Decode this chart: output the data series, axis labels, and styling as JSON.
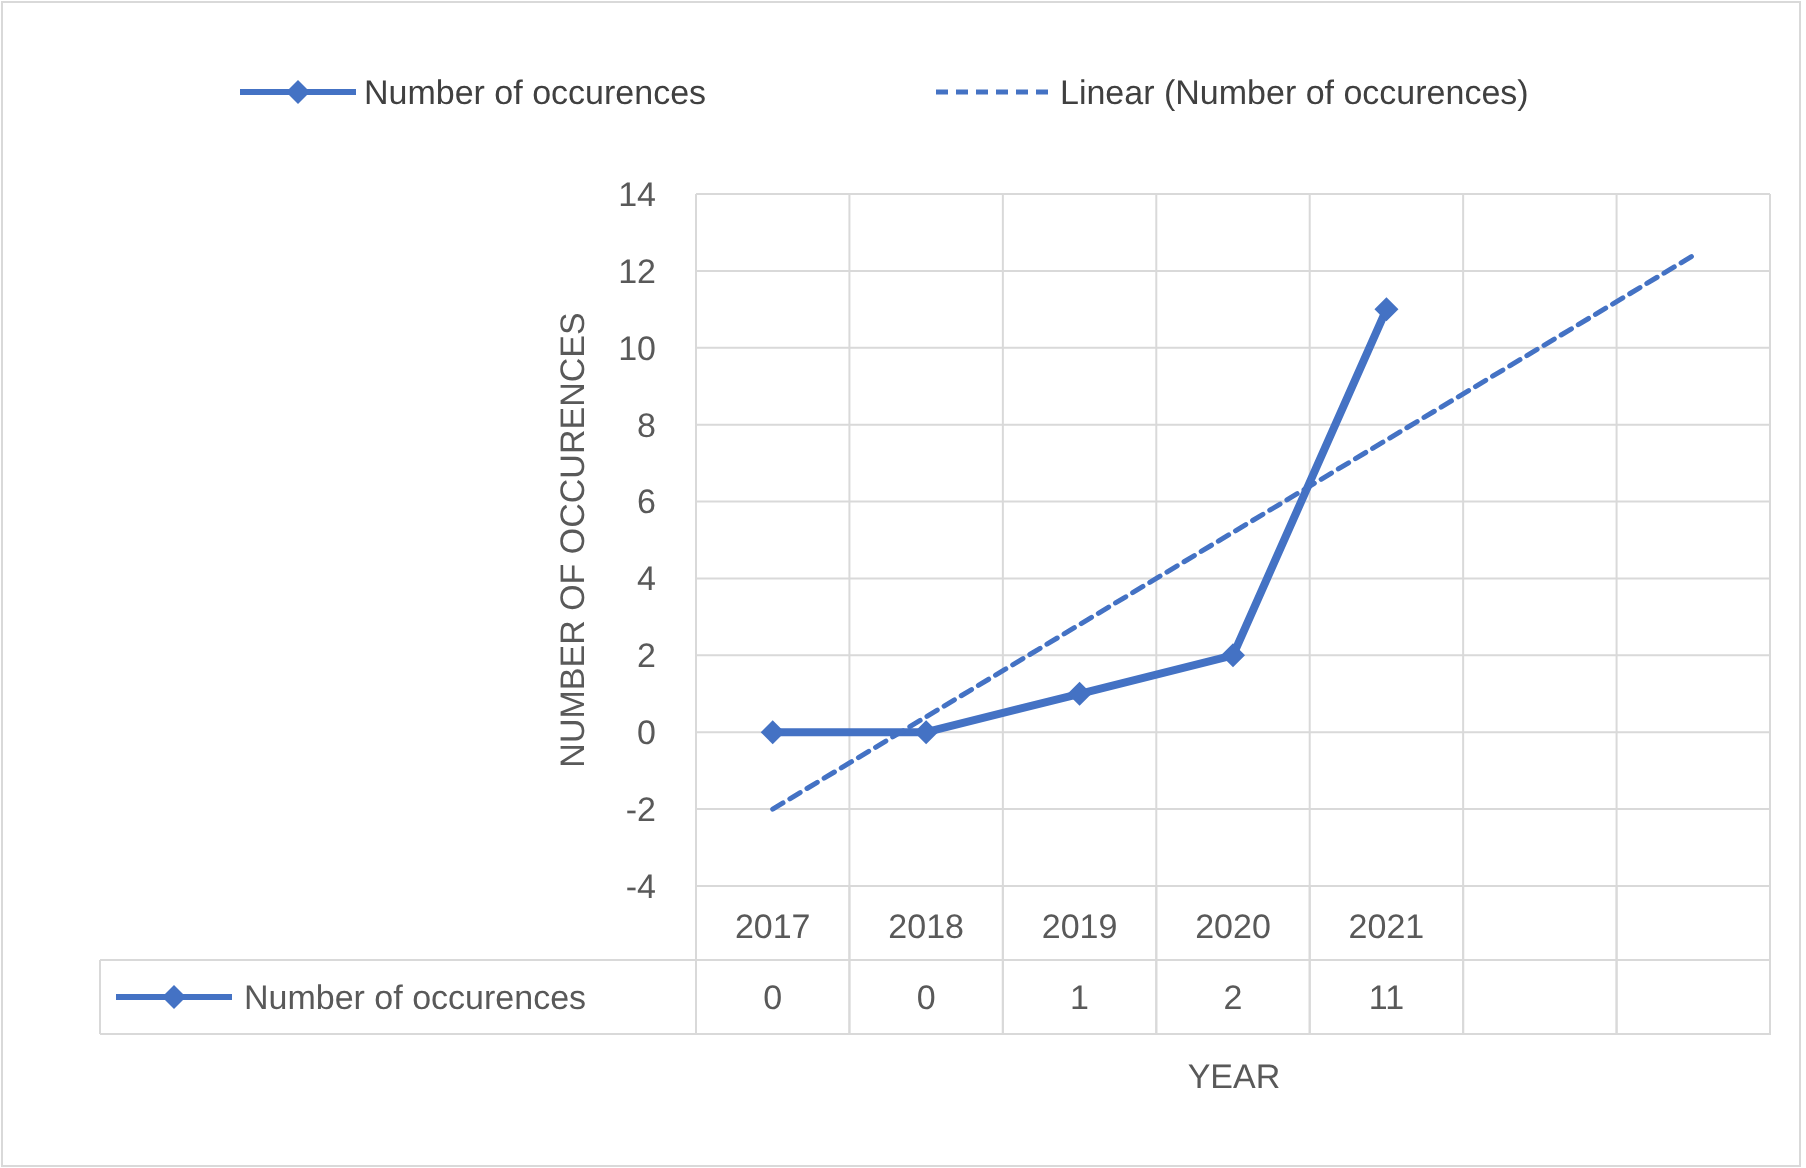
{
  "chart_data": {
    "type": "line",
    "xlabel": "YEAR",
    "ylabel": "NUMBER OF OCCURENCES",
    "categories": [
      "2017",
      "2018",
      "2019",
      "2020",
      "2021",
      null,
      null
    ],
    "series": [
      {
        "name": "Number of occurences",
        "color": "#4472c4",
        "marker": "diamond",
        "line_style": "solid",
        "values": [
          0,
          0,
          1,
          2,
          11,
          null,
          null
        ],
        "value_labels": [
          "0",
          "0",
          "1",
          "2",
          "11",
          null,
          null
        ]
      },
      {
        "name": "Linear (Number of occurences)",
        "color": "#4472c4",
        "marker": "none",
        "line_style": "dashed",
        "values": [
          -2,
          0.4,
          2.8,
          5.2,
          7.6,
          10,
          12.4
        ]
      }
    ],
    "ylim": [
      -4,
      14
    ],
    "yticks": [
      -4,
      -2,
      0,
      2,
      4,
      6,
      8,
      10,
      12,
      14
    ],
    "grid": true,
    "legend": "top"
  }
}
